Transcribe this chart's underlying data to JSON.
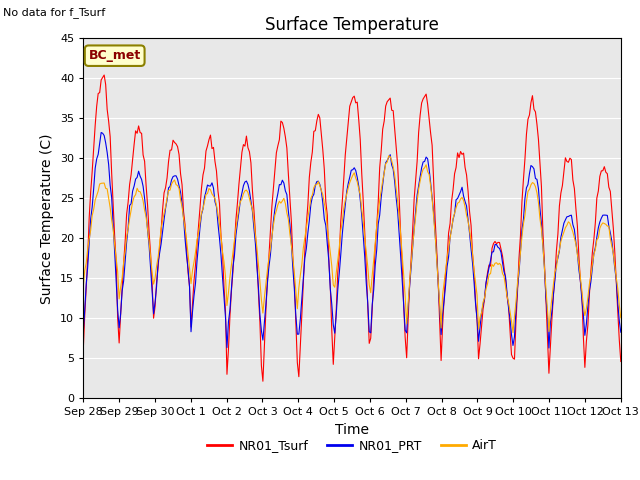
{
  "title": "Surface Temperature",
  "ylabel": "Surface Temperature (C)",
  "xlabel": "Time",
  "top_left_text": "No data for f_Tsurf",
  "annotation_text": "BC_met",
  "ylim": [
    0,
    45
  ],
  "yticks": [
    0,
    5,
    10,
    15,
    20,
    25,
    30,
    35,
    40,
    45
  ],
  "xtick_labels": [
    "Sep 28",
    "Sep 29",
    "Sep 30",
    "Oct 1",
    "Oct 2",
    "Oct 3",
    "Oct 4",
    "Oct 5",
    "Oct 6",
    "Oct 7",
    "Oct 8",
    "Oct 9",
    "Oct 10",
    "Oct 11",
    "Oct 12",
    "Oct 13"
  ],
  "legend_labels": [
    "NR01_Tsurf",
    "NR01_PRT",
    "AirT"
  ],
  "line_colors": [
    "#ff0000",
    "#0000ee",
    "#ffaa00"
  ],
  "background_color": "#e8e8e8",
  "title_fontsize": 12,
  "axis_label_fontsize": 10,
  "tick_fontsize": 8
}
